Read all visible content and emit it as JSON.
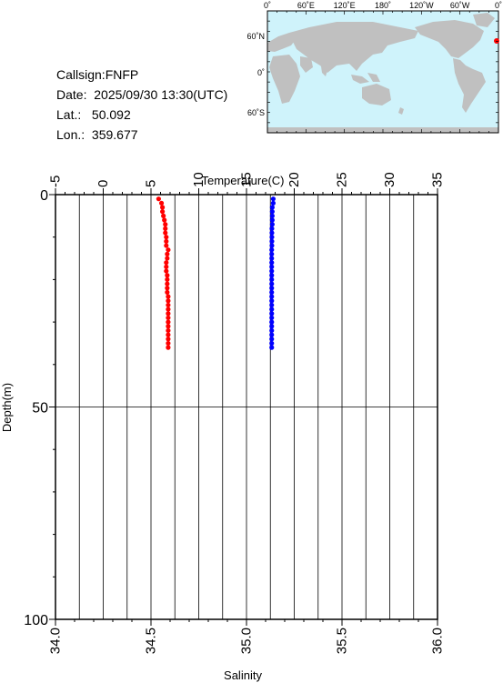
{
  "station": {
    "callsign_label": "Callsign:",
    "callsign": "FNFP",
    "date_label": "Date:",
    "date": "2025/09/30 13:30(UTC)",
    "lat_label": "Lat.:",
    "lat": "50.092",
    "lon_label": "Lon.:",
    "lon": "359.677"
  },
  "map": {
    "lon_labels": [
      "0˚",
      "60˚E",
      "120˚E",
      "180˚",
      "120˚W",
      "60˚W",
      "0˚"
    ],
    "lat_labels": [
      "60˚N",
      "0˚",
      "60˚S"
    ],
    "ocean_color": "#cff3fb",
    "land_color": "#c0c0c0",
    "marker_color": "#ff0000"
  },
  "chart_data": {
    "type": "scatter",
    "y_axis": {
      "label": "Depth(m)",
      "range": [
        0,
        100
      ],
      "inverted": true,
      "ticks": [
        0,
        50,
        100
      ],
      "tick_labels": [
        "0",
        "50",
        "100"
      ]
    },
    "top_axis": {
      "label": "Temperature(C)",
      "range": [
        -5,
        35
      ],
      "ticks": [
        -5,
        0,
        5,
        10,
        15,
        20,
        25,
        30,
        35
      ],
      "tick_labels": [
        "-5",
        "0",
        "5",
        "10",
        "15",
        "20",
        "25",
        "30",
        "35"
      ]
    },
    "bottom_axis": {
      "label": "Salinity",
      "range": [
        34.0,
        36.0
      ],
      "ticks": [
        34.0,
        34.5,
        35.0,
        35.5,
        36.0
      ],
      "tick_labels": [
        "34.0",
        "34.5",
        "35.0",
        "35.5",
        "36.0"
      ]
    },
    "grid": {
      "vertical_every": 2.5,
      "horizontal": [
        50
      ]
    },
    "series": [
      {
        "color": "#ff0000",
        "axis": "top",
        "depth": [
          1,
          2,
          3,
          4,
          5,
          6,
          7,
          8,
          9,
          10,
          11,
          12,
          13,
          14,
          15,
          16,
          17,
          18,
          19,
          20,
          21,
          22,
          23,
          24,
          25,
          26,
          27,
          28,
          29,
          30,
          31,
          32,
          33,
          34,
          35,
          36
        ],
        "temperature": [
          5.8,
          6.1,
          6.2,
          6.2,
          6.3,
          6.4,
          6.5,
          6.5,
          6.5,
          6.6,
          6.6,
          6.6,
          6.8,
          6.7,
          6.7,
          6.6,
          6.6,
          6.6,
          6.7,
          6.7,
          6.7,
          6.7,
          6.7,
          6.8,
          6.8,
          6.8,
          6.8,
          6.8,
          6.8,
          6.8,
          6.8,
          6.8,
          6.8,
          6.8,
          6.8,
          6.8
        ]
      },
      {
        "color": "#0000ff",
        "axis": "bottom",
        "depth": [
          1,
          2,
          3,
          4,
          5,
          6,
          7,
          8,
          9,
          10,
          11,
          12,
          13,
          14,
          15,
          16,
          17,
          18,
          19,
          20,
          21,
          22,
          23,
          24,
          25,
          26,
          27,
          28,
          29,
          30,
          31,
          32,
          33,
          34,
          35,
          36
        ],
        "salinity": [
          35.14,
          35.14,
          35.135,
          35.135,
          35.135,
          35.135,
          35.135,
          35.133,
          35.133,
          35.133,
          35.133,
          35.133,
          35.132,
          35.132,
          35.132,
          35.132,
          35.132,
          35.132,
          35.132,
          35.132,
          35.132,
          35.132,
          35.132,
          35.132,
          35.132,
          35.132,
          35.132,
          35.132,
          35.132,
          35.132,
          35.132,
          35.132,
          35.132,
          35.132,
          35.132,
          35.132
        ]
      }
    ]
  }
}
